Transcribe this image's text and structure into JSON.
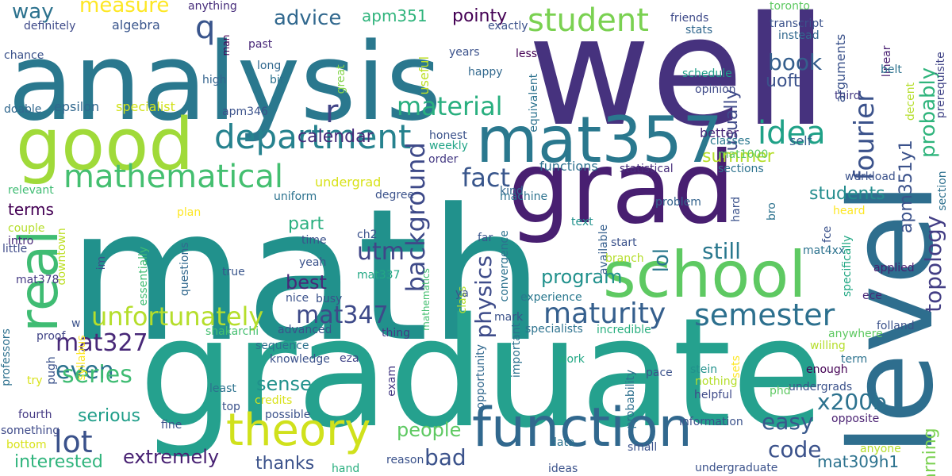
{
  "words": [
    {
      "text": "math",
      "color": "#21918c"
    },
    {
      "text": "graduate",
      "color": "#25a18e"
    },
    {
      "text": "analysis",
      "color": "#2a788e"
    },
    {
      "text": "well",
      "color": "#46327e"
    },
    {
      "text": "level",
      "color": "#2e6e8e"
    },
    {
      "text": "grad",
      "color": "#481f71"
    },
    {
      "text": "good",
      "color": "#a0da39"
    },
    {
      "text": "school",
      "color": "#5ec962"
    },
    {
      "text": "mat357",
      "color": "#2a788e"
    },
    {
      "text": "function",
      "color": "#31688e"
    },
    {
      "text": "real",
      "color": "#3fbc73"
    },
    {
      "text": "theory",
      "color": "#d0e11c"
    },
    {
      "text": "department",
      "color": "#26828e"
    },
    {
      "text": "mathematical",
      "color": "#44bf70"
    },
    {
      "text": "student",
      "color": "#7ad151"
    },
    {
      "text": "idea",
      "color": "#1fa187"
    },
    {
      "text": "fourier",
      "color": "#3b528b"
    },
    {
      "text": "semester",
      "color": "#2d708e"
    },
    {
      "text": "maturity",
      "color": "#355f8d"
    },
    {
      "text": "lot",
      "color": "#3b528b"
    },
    {
      "text": "material",
      "color": "#29af7f"
    },
    {
      "text": "unfortunately",
      "color": "#b5de2b"
    },
    {
      "text": "background",
      "color": "#3e4a89"
    },
    {
      "text": "mat347",
      "color": "#3e4a89"
    },
    {
      "text": "mat327",
      "color": "#482878"
    },
    {
      "text": "even",
      "color": "#2c728e"
    },
    {
      "text": "series",
      "color": "#3fbc73"
    },
    {
      "text": "topology",
      "color": "#433e85"
    },
    {
      "text": "probably",
      "color": "#2fb47c"
    },
    {
      "text": "book",
      "color": "#355f8d"
    },
    {
      "text": "physics",
      "color": "#3e4c8a"
    },
    {
      "text": "q",
      "color": "#39558c"
    },
    {
      "text": "r",
      "color": "#414487"
    },
    {
      "text": "fact",
      "color": "#39568c"
    },
    {
      "text": "utm",
      "color": "#404588"
    },
    {
      "text": "easy",
      "color": "#38588c"
    },
    {
      "text": "x200b",
      "color": "#2c728e"
    },
    {
      "text": "code",
      "color": "#3b528b"
    },
    {
      "text": "bad",
      "color": "#3b528b"
    },
    {
      "text": "extremely",
      "color": "#482173"
    },
    {
      "text": "theres",
      "color": "#2c728e"
    },
    {
      "text": "measure",
      "color": "#fde725"
    },
    {
      "text": "way",
      "color": "#2c728e"
    },
    {
      "text": "advice",
      "color": "#31688e"
    },
    {
      "text": "apm351",
      "color": "#2fb47c"
    },
    {
      "text": "pointy",
      "color": "#440154"
    },
    {
      "text": "summer",
      "color": "#b5de2b"
    },
    {
      "text": "students",
      "color": "#228c8d"
    },
    {
      "text": "still",
      "color": "#2a788e"
    },
    {
      "text": "program",
      "color": "#21918c"
    },
    {
      "text": "best",
      "color": "#482878"
    },
    {
      "text": "sense",
      "color": "#21918c"
    },
    {
      "text": "people",
      "color": "#5ec962"
    },
    {
      "text": "thanks",
      "color": "#3b528b"
    },
    {
      "text": "interested",
      "color": "#2fb47c"
    },
    {
      "text": "serious",
      "color": "#1f9e89"
    },
    {
      "text": "terms",
      "color": "#440154"
    },
    {
      "text": "calendar",
      "color": "#472d7b"
    },
    {
      "text": "part",
      "color": "#29af7f"
    },
    {
      "text": "lol",
      "color": "#2a788e"
    },
    {
      "text": "uoft",
      "color": "#3b528b"
    },
    {
      "text": "usually",
      "color": "#3e4a89"
    },
    {
      "text": "apm351y1",
      "color": "#3b528b"
    },
    {
      "text": "learning",
      "color": "#7ad151"
    },
    {
      "text": "mat309h1",
      "color": "#2c728e"
    },
    {
      "text": "functions",
      "color": "#2d708e"
    },
    {
      "text": "epsilon",
      "color": "#31688e"
    },
    {
      "text": "specialist",
      "color": "#d2e21b"
    },
    {
      "text": "algebra",
      "color": "#39558c"
    },
    {
      "text": "definitely",
      "color": "#3e4a89"
    },
    {
      "text": "anything",
      "color": "#472d7b"
    },
    {
      "text": "chance",
      "color": "#3b528b"
    },
    {
      "text": "high",
      "color": "#33638d"
    },
    {
      "text": "man",
      "color": "#440154"
    },
    {
      "text": "past",
      "color": "#482878"
    },
    {
      "text": "long",
      "color": "#31688e"
    },
    {
      "text": "bit",
      "color": "#2c728e"
    },
    {
      "text": "doable",
      "color": "#31688e"
    },
    {
      "text": "apm346",
      "color": "#3b528b"
    },
    {
      "text": "useful",
      "color": "#bddf26"
    },
    {
      "text": "great",
      "color": "#84d44b"
    },
    {
      "text": "years",
      "color": "#3b528b"
    },
    {
      "text": "less",
      "color": "#440154"
    },
    {
      "text": "happy",
      "color": "#31688e"
    },
    {
      "text": "exactly",
      "color": "#3b528b"
    },
    {
      "text": "friends",
      "color": "#3e4a89"
    },
    {
      "text": "stats",
      "color": "#31688e"
    },
    {
      "text": "schedule",
      "color": "#1f9e89"
    },
    {
      "text": "toronto",
      "color": "#5ec962"
    },
    {
      "text": "transcript",
      "color": "#3b528b"
    },
    {
      "text": "instead",
      "color": "#31688e"
    },
    {
      "text": "linear",
      "color": "#481f71"
    },
    {
      "text": "belt",
      "color": "#2c728e"
    },
    {
      "text": "third",
      "color": "#443983"
    },
    {
      "text": "opinion",
      "color": "#3e4a89"
    },
    {
      "text": "arguments",
      "color": "#3b528b"
    },
    {
      "text": "decent",
      "color": "#b5de2b"
    },
    {
      "text": "prerequisite",
      "color": "#414487"
    },
    {
      "text": "equivalent",
      "color": "#2c728e"
    },
    {
      "text": "honest",
      "color": "#3b528b"
    },
    {
      "text": "weekly",
      "color": "#20a486"
    },
    {
      "text": "classes",
      "color": "#2a788e"
    },
    {
      "text": "mat1000",
      "color": "#5ec962"
    },
    {
      "text": "sections",
      "color": "#2c728e"
    },
    {
      "text": "better",
      "color": "#482878"
    },
    {
      "text": "self",
      "color": "#355f8d"
    },
    {
      "text": "workload",
      "color": "#3b528b"
    },
    {
      "text": "section",
      "color": "#2d708e"
    },
    {
      "text": "kind",
      "color": "#31688e"
    },
    {
      "text": "order",
      "color": "#443983"
    },
    {
      "text": "statistical",
      "color": "#472d7b"
    },
    {
      "text": "undergrad",
      "color": "#d8e219"
    },
    {
      "text": "relevant",
      "color": "#3fbc73"
    },
    {
      "text": "degree",
      "color": "#3b528b"
    },
    {
      "text": "machine",
      "color": "#2c728e"
    },
    {
      "text": "uniform",
      "color": "#2c728e"
    },
    {
      "text": "problem",
      "color": "#33638d"
    },
    {
      "text": "hard",
      "color": "#3b528b"
    },
    {
      "text": "bro",
      "color": "#2c728e"
    },
    {
      "text": "heard",
      "color": "#fde725"
    },
    {
      "text": "plan",
      "color": "#fde725"
    },
    {
      "text": "couple",
      "color": "#b5de2b"
    },
    {
      "text": "text",
      "color": "#21918c"
    },
    {
      "text": "available",
      "color": "#355f8d"
    },
    {
      "text": "start",
      "color": "#3b528b"
    },
    {
      "text": "fce",
      "color": "#3b528b"
    },
    {
      "text": "specifically",
      "color": "#22a884"
    },
    {
      "text": "intro",
      "color": "#482878"
    },
    {
      "text": "little",
      "color": "#3e4a89"
    },
    {
      "text": "ch2",
      "color": "#3b528b"
    },
    {
      "text": "time",
      "color": "#3b528b"
    },
    {
      "text": "far",
      "color": "#39558c"
    },
    {
      "text": "mat4xx",
      "color": "#2c728e"
    },
    {
      "text": "branch",
      "color": "#b5de2b"
    },
    {
      "text": "downtown",
      "color": "#bddf26"
    },
    {
      "text": "im",
      "color": "#3b528b"
    },
    {
      "text": "yeah",
      "color": "#3b528b"
    },
    {
      "text": "true",
      "color": "#39558c"
    },
    {
      "text": "convergence",
      "color": "#2c728e"
    },
    {
      "text": "mat337",
      "color": "#22a884"
    },
    {
      "text": "mathematics",
      "color": "#44bf70"
    },
    {
      "text": "class",
      "color": "#b5de2b"
    },
    {
      "text": "ya",
      "color": "#3b528b"
    },
    {
      "text": "experience",
      "color": "#2a788e"
    },
    {
      "text": "applied",
      "color": "#481f71"
    },
    {
      "text": "mat378",
      "color": "#443983"
    },
    {
      "text": "essentially",
      "color": "#3fbc73"
    },
    {
      "text": "questions",
      "color": "#31688e"
    },
    {
      "text": "nice",
      "color": "#3b528b"
    },
    {
      "text": "busy",
      "color": "#3b528b"
    },
    {
      "text": "ece",
      "color": "#482878"
    },
    {
      "text": "w",
      "color": "#3b528b"
    },
    {
      "text": "advanced",
      "color": "#3b528b"
    },
    {
      "text": "shakarchi",
      "color": "#44bf70"
    },
    {
      "text": "thing",
      "color": "#443983"
    },
    {
      "text": "mark",
      "color": "#3b528b"
    },
    {
      "text": "specialists",
      "color": "#2c728e"
    },
    {
      "text": "incredible",
      "color": "#29af7f"
    },
    {
      "text": "anywhere",
      "color": "#5ec962"
    },
    {
      "text": "folland",
      "color": "#3b528b"
    },
    {
      "text": "professors",
      "color": "#2d708e"
    },
    {
      "text": "proof",
      "color": "#414487"
    },
    {
      "text": "syllabus",
      "color": "#fde725"
    },
    {
      "text": "knowledge",
      "color": "#3b528b"
    },
    {
      "text": "eza",
      "color": "#414487"
    },
    {
      "text": "willing",
      "color": "#b5de2b"
    },
    {
      "text": "pugh",
      "color": "#3b528b"
    },
    {
      "text": "sequence",
      "color": "#2c728e"
    },
    {
      "text": "important",
      "color": "#2c728e"
    },
    {
      "text": "opportunity",
      "color": "#31688e"
    },
    {
      "text": "work",
      "color": "#22a884"
    },
    {
      "text": "sets",
      "color": "#fde725"
    },
    {
      "text": "term",
      "color": "#2c728e"
    },
    {
      "text": "enough",
      "color": "#440154"
    },
    {
      "text": "try",
      "color": "#d8e219"
    },
    {
      "text": "least",
      "color": "#2c728e"
    },
    {
      "text": "pace",
      "color": "#3b528b"
    },
    {
      "text": "stein",
      "color": "#21918c"
    },
    {
      "text": "nothing",
      "color": "#b5de2b"
    },
    {
      "text": "undergrads",
      "color": "#3b528b"
    },
    {
      "text": "fourth",
      "color": "#443983"
    },
    {
      "text": "top",
      "color": "#3b528b"
    },
    {
      "text": "credits",
      "color": "#d8e219"
    },
    {
      "text": "exam",
      "color": "#443983"
    },
    {
      "text": "probability",
      "color": "#2d708e"
    },
    {
      "text": "helpful",
      "color": "#3e4a89"
    },
    {
      "text": "phd",
      "color": "#5ec962"
    },
    {
      "text": "possible",
      "color": "#3b528b"
    },
    {
      "text": "something",
      "color": "#3e4a89"
    },
    {
      "text": "fine",
      "color": "#3b528b"
    },
    {
      "text": "information",
      "color": "#3b528b"
    },
    {
      "text": "opposite",
      "color": "#481f71"
    },
    {
      "text": "bottom",
      "color": "#d8e219"
    },
    {
      "text": "data",
      "color": "#2c728e"
    },
    {
      "text": "small",
      "color": "#3b528b"
    },
    {
      "text": "anyone",
      "color": "#b5de2b"
    },
    {
      "text": "hand",
      "color": "#29af7f"
    },
    {
      "text": "reason",
      "color": "#3b528b"
    },
    {
      "text": "ideas",
      "color": "#3b528b"
    },
    {
      "text": "undergraduate",
      "color": "#3b528b"
    },
    {
      "text": "obvious",
      "color": "#5ec962"
    }
  ]
}
